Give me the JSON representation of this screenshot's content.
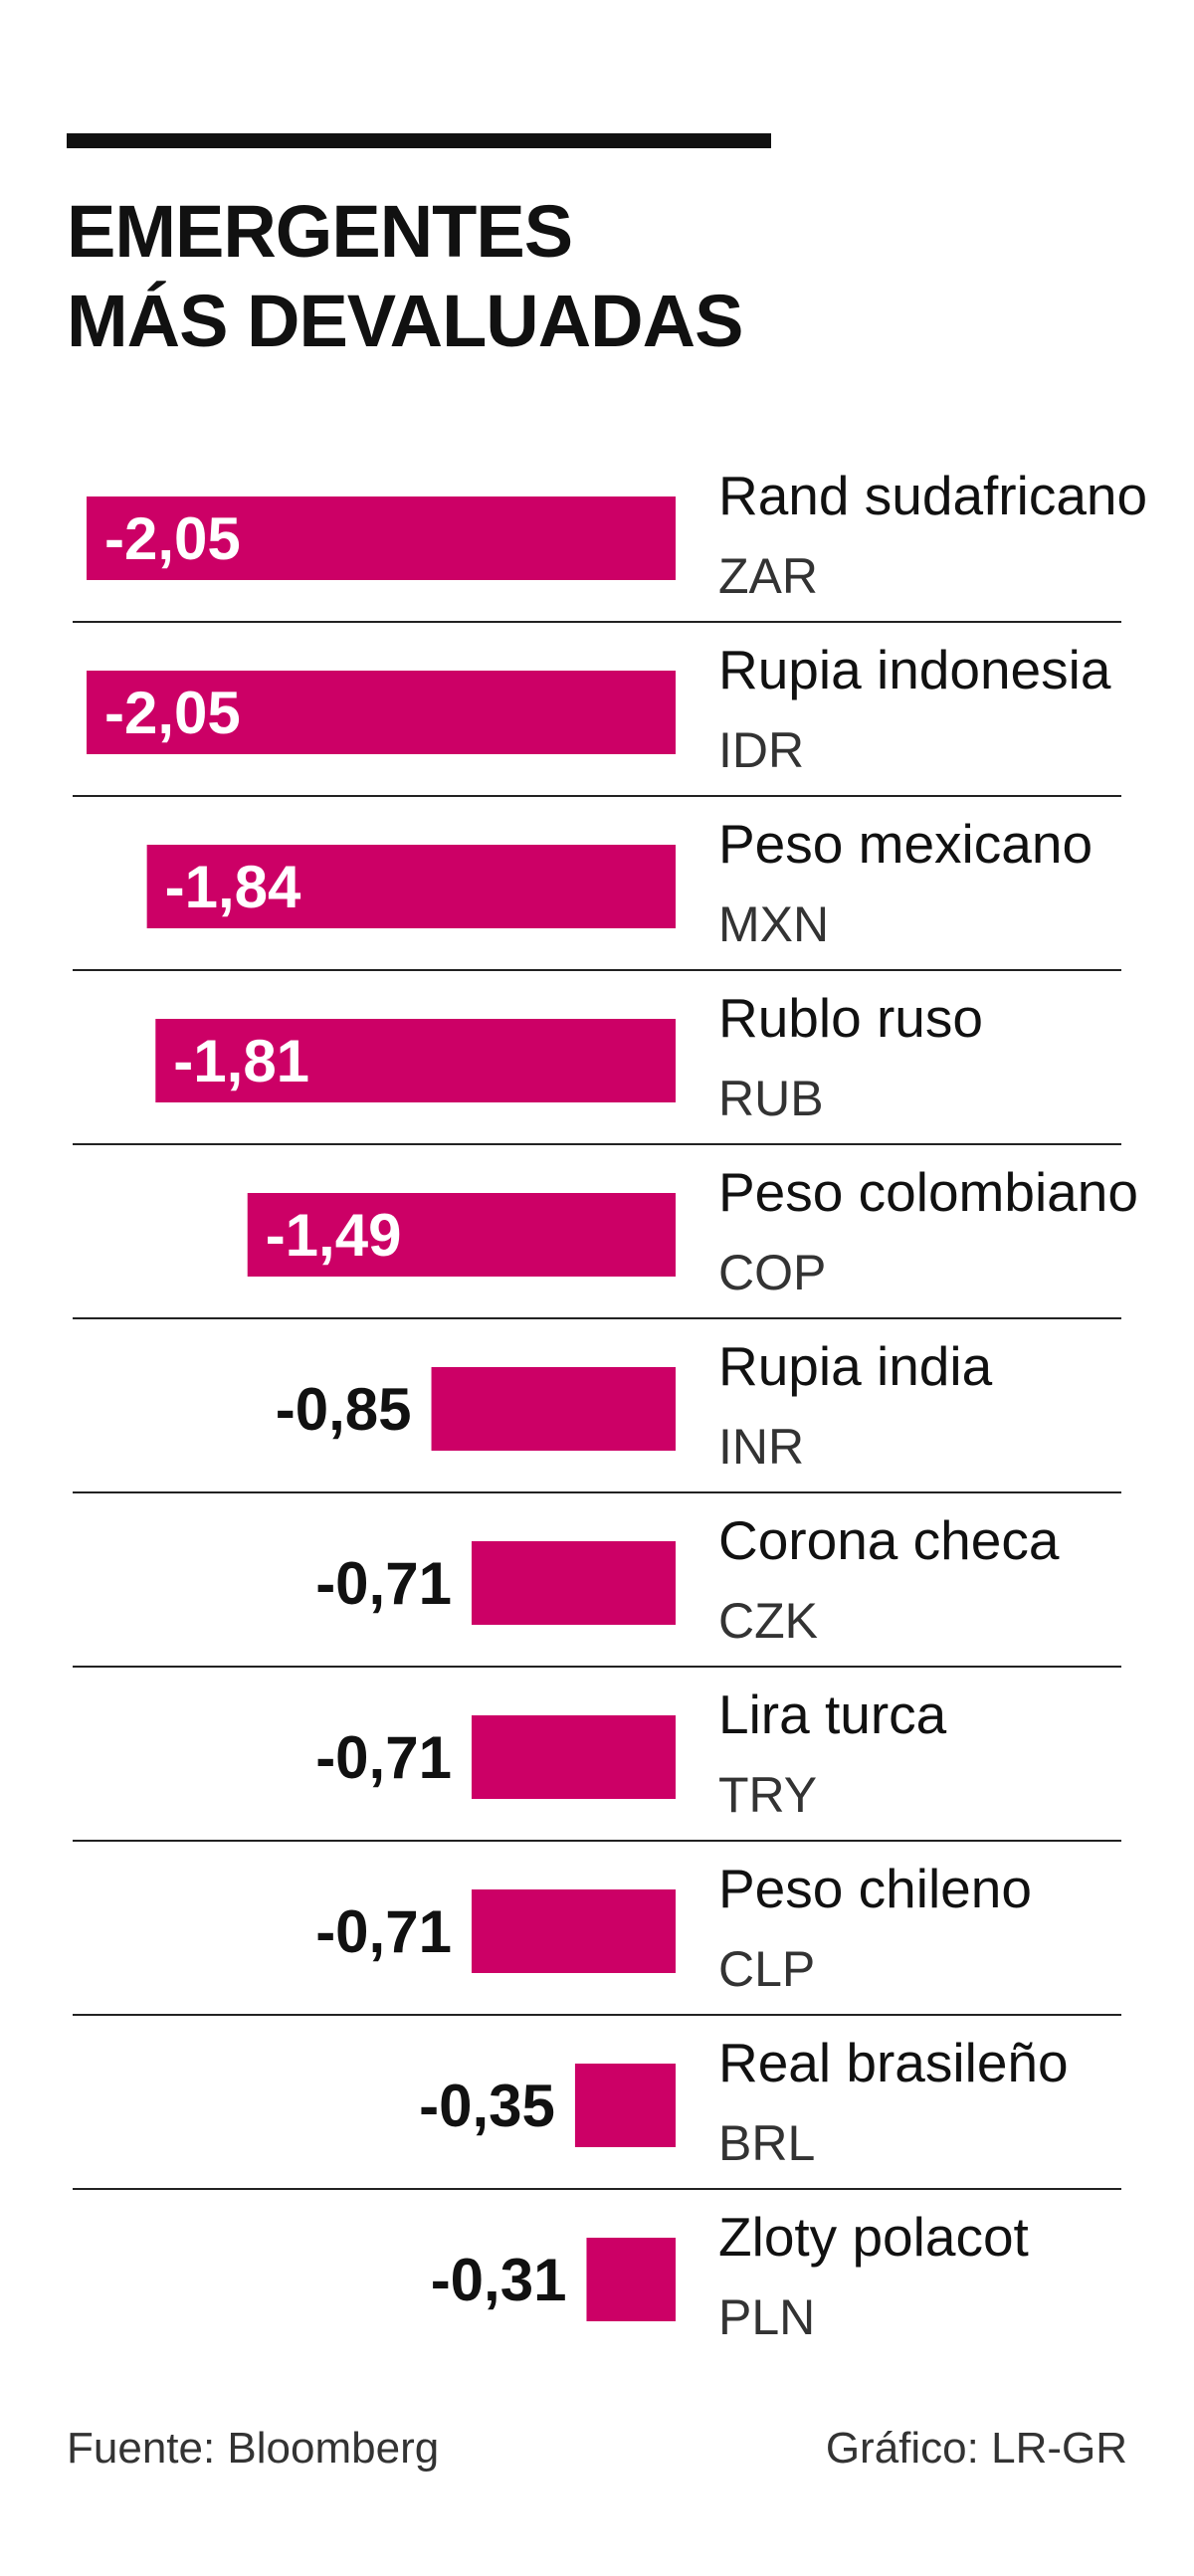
{
  "chart_data": {
    "type": "bar",
    "orientation": "horizontal",
    "title": "EMERGENTES MÁS DEVALUADAS",
    "title_lines": [
      "EMERGENTES",
      "MÁS DEVALUADAS"
    ],
    "categories": [
      "Rand sudafricano",
      "Rupia indonesia",
      "Peso mexicano",
      "Rublo ruso",
      "Peso colombiano",
      "Rupia india",
      "Corona checa",
      "Lira turca",
      "Peso chileno",
      "Real brasileño",
      "Zloty polacot"
    ],
    "codes": [
      "ZAR",
      "IDR",
      "MXN",
      "RUB",
      "COP",
      "INR",
      "CZK",
      "TRY",
      "CLP",
      "BRL",
      "PLN"
    ],
    "values": [
      -2.05,
      -2.05,
      -1.84,
      -1.81,
      -1.49,
      -0.85,
      -0.71,
      -0.71,
      -0.71,
      -0.35,
      -0.31
    ],
    "value_labels": [
      "-2,05",
      "-2,05",
      "-1,84",
      "-1,81",
      "-1,49",
      "-0,85",
      "-0,71",
      "-0,71",
      "-0,71",
      "-0,35",
      "-0,31"
    ],
    "xlim": [
      -2.05,
      0
    ],
    "bar_color": "#cc0066",
    "grid": false,
    "source": "Fuente: Bloomberg",
    "credit": "Gráfico: LR-GR"
  }
}
